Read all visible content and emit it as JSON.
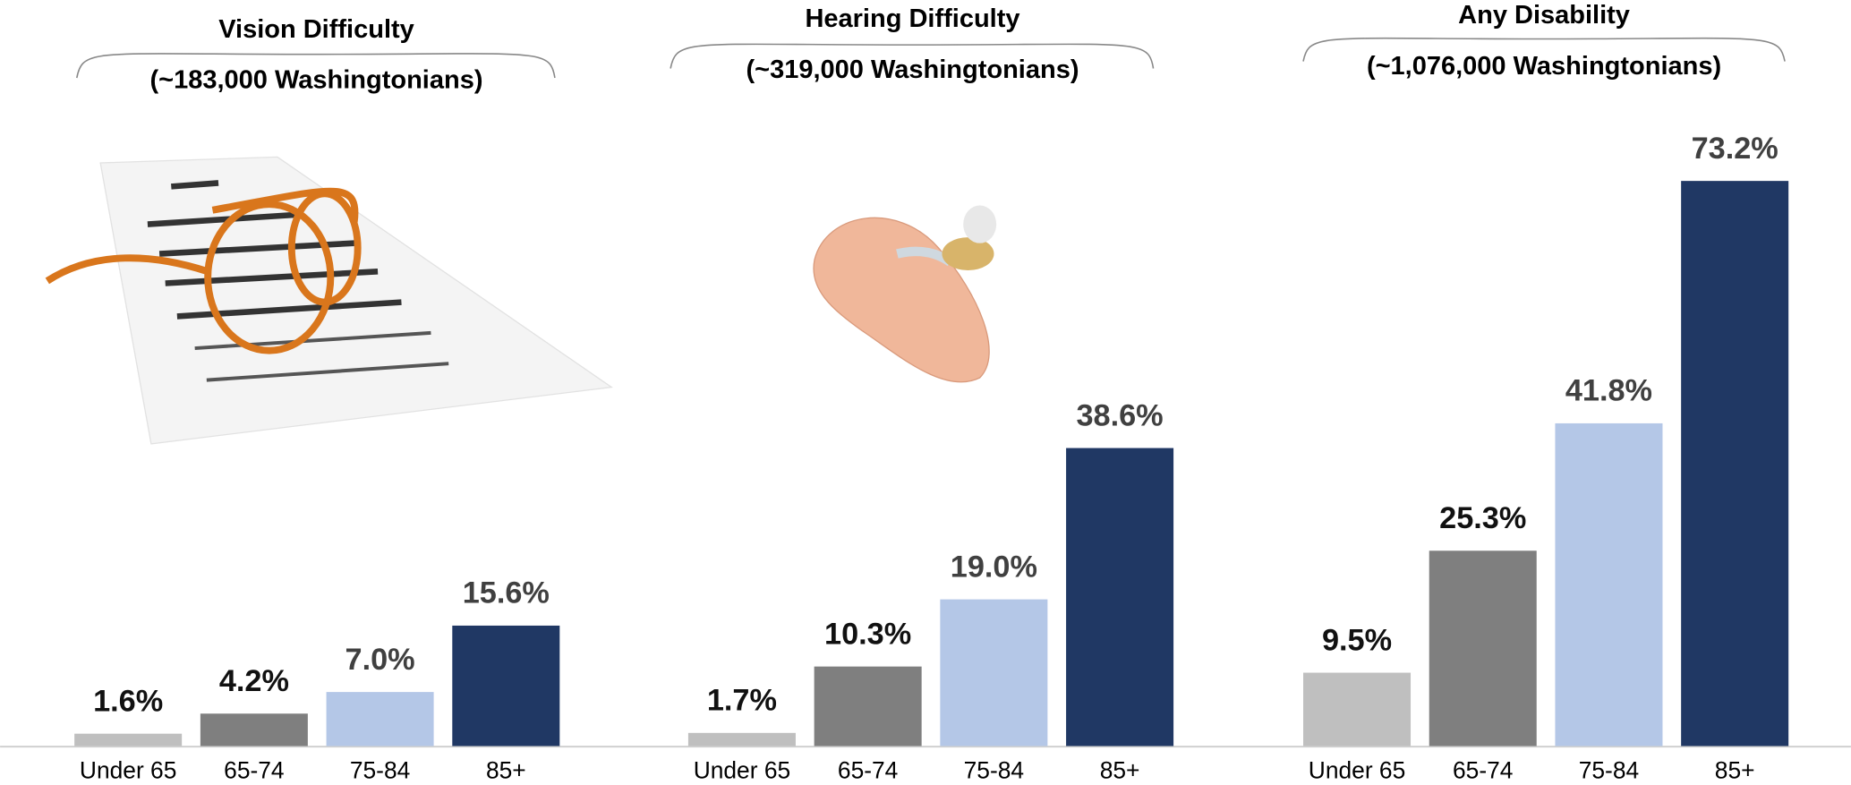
{
  "chart_data": [
    {
      "type": "bar",
      "title": "Vision Difficulty",
      "subtitle": "(~183,000 Washingtonians)",
      "categories": [
        "Under 65",
        "65-74",
        "75-84",
        "85+"
      ],
      "values": [
        1.6,
        4.2,
        7.0,
        15.6
      ],
      "value_labels": [
        "1.6%",
        "4.2%",
        "7.0%",
        "15.6%"
      ],
      "colors": [
        "#bfbfbf",
        "#7f7f7f",
        "#b4c7e7",
        "#203864"
      ]
    },
    {
      "type": "bar",
      "title": "Hearing Difficulty",
      "subtitle": "(~319,000 Washingtonians)",
      "categories": [
        "Under 65",
        "65-74",
        "75-84",
        "85+"
      ],
      "values": [
        1.7,
        10.3,
        19.0,
        38.6
      ],
      "value_labels": [
        "1.7%",
        "10.3%",
        "19.0%",
        "38.6%"
      ],
      "colors": [
        "#bfbfbf",
        "#7f7f7f",
        "#b4c7e7",
        "#203864"
      ]
    },
    {
      "type": "bar",
      "title": "Any Disability",
      "subtitle": "(~1,076,000 Washingtonians)",
      "categories": [
        "Under 65",
        "65-74",
        "75-84",
        "85+"
      ],
      "values": [
        9.5,
        25.3,
        41.8,
        73.2
      ],
      "value_labels": [
        "9.5%",
        "25.3%",
        "41.8%",
        "73.2%"
      ],
      "colors": [
        "#bfbfbf",
        "#7f7f7f",
        "#b4c7e7",
        "#203864"
      ]
    }
  ]
}
